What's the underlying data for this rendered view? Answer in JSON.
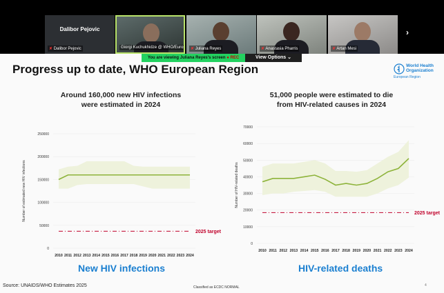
{
  "meeting": {
    "participants": [
      {
        "name": "Dalibor Pejovic",
        "display": "Dalibor Pejovic",
        "muted": true,
        "video": false
      },
      {
        "name": "Giorgi Kuchukhidze @ WHO/Europe",
        "muted": false,
        "video": true,
        "active": true
      },
      {
        "name": "Juliana Reyes",
        "muted": true,
        "video": true
      },
      {
        "name": "Anastasia Pharris",
        "muted": true,
        "video": true
      },
      {
        "name": "Artan Mesi",
        "muted": true,
        "video": true
      }
    ],
    "banner": "You are viewing Juliana Reyes's screen",
    "rec": "REC",
    "view_options": "View Options ⌄",
    "next_icon": "chevron-right-icon"
  },
  "slide": {
    "title": "Progress up to date, WHO European Region",
    "logo": {
      "line1": "World Health",
      "line2": "Organization",
      "region": "European Region"
    },
    "source": "Source: UNAIDS/WHO Estimates 2025",
    "classification": "Classified as ECDC NORMAL",
    "page": "4",
    "left": {
      "title1": "Around 160,000 new HIV infections",
      "title2": "were estimated in 2024",
      "label": "New HIV infections"
    },
    "right": {
      "title1": "51,000 people were estimated to die",
      "title2": "from HIV-related causes in 2024",
      "label": "HIV-related deaths"
    }
  },
  "chart_data": [
    {
      "type": "line",
      "ylabel": "Number of estimated new HIV infections",
      "ylim": [
        0,
        250000
      ],
      "yticks": [
        0,
        50000,
        100000,
        150000,
        200000,
        250000
      ],
      "x": [
        2010,
        2011,
        2012,
        2013,
        2014,
        2015,
        2016,
        2017,
        2018,
        2019,
        2020,
        2021,
        2022,
        2023,
        2024
      ],
      "values": [
        150000,
        160000,
        160000,
        160000,
        160000,
        160000,
        160000,
        160000,
        160000,
        160000,
        160000,
        160000,
        160000,
        160000,
        160000
      ],
      "lower": [
        130000,
        130000,
        138000,
        140000,
        140000,
        140000,
        140000,
        140000,
        140000,
        135000,
        130000,
        130000,
        130000,
        130000,
        130000
      ],
      "upper": [
        172000,
        178000,
        180000,
        190000,
        190000,
        190000,
        190000,
        190000,
        180000,
        178000,
        178000,
        178000,
        178000,
        178000,
        178000
      ],
      "target": {
        "value": 37000,
        "label": "2025 target"
      },
      "line_color": "#8db33a",
      "band_color": "#eef2dc",
      "target_color": "#c0002a",
      "grid": true
    },
    {
      "type": "line",
      "ylabel": "Number of HIV-related deaths",
      "ylim": [
        0,
        70000
      ],
      "yticks": [
        0,
        10000,
        20000,
        30000,
        40000,
        50000,
        60000,
        70000
      ],
      "x": [
        2010,
        2011,
        2012,
        2013,
        2014,
        2015,
        2016,
        2017,
        2018,
        2019,
        2020,
        2021,
        2022,
        2023,
        2024
      ],
      "values": [
        37000,
        39000,
        39000,
        39000,
        40000,
        41000,
        38500,
        35000,
        36000,
        35000,
        36000,
        39000,
        43000,
        45000,
        51000
      ],
      "lower": [
        29000,
        30000,
        30000,
        31000,
        31500,
        32000,
        31000,
        28000,
        28000,
        28000,
        28000,
        30000,
        33000,
        35000,
        39500
      ],
      "upper": [
        46000,
        48000,
        48000,
        48000,
        49000,
        50000,
        48000,
        43500,
        43500,
        43000,
        44000,
        48000,
        52000,
        55000,
        62000
      ],
      "target": {
        "value": 18500,
        "label": "2025 target"
      },
      "line_color": "#8db33a",
      "band_color": "#eef2dc",
      "target_color": "#c0002a",
      "grid": true
    }
  ]
}
